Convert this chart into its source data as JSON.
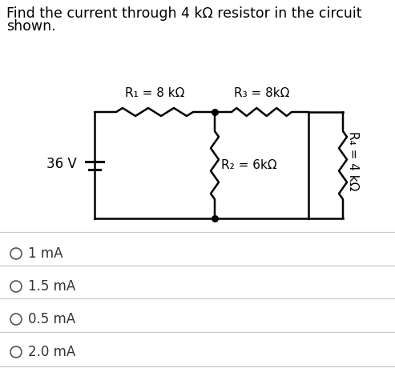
{
  "title_line1": "Find the current through 4 kΩ resistor in the circuit",
  "title_line2": "shown.",
  "bg_color": "#ffffff",
  "text_color": "#000000",
  "circuit": {
    "voltage_label": "36 V",
    "R1_label": "R₁ = 8 kΩ",
    "R2_label": "R₂ = 6kΩ",
    "R3_label": "R₃ = 8kΩ",
    "R4_label": "R₄ = 4 kΩ"
  },
  "choices": [
    "1 mA",
    "1.5 mA",
    "0.5 mA",
    "2.0 mA"
  ],
  "divider_color": "#c8c8c8",
  "font_size_title": 12.5,
  "font_size_choice": 12,
  "font_size_circuit": 11
}
